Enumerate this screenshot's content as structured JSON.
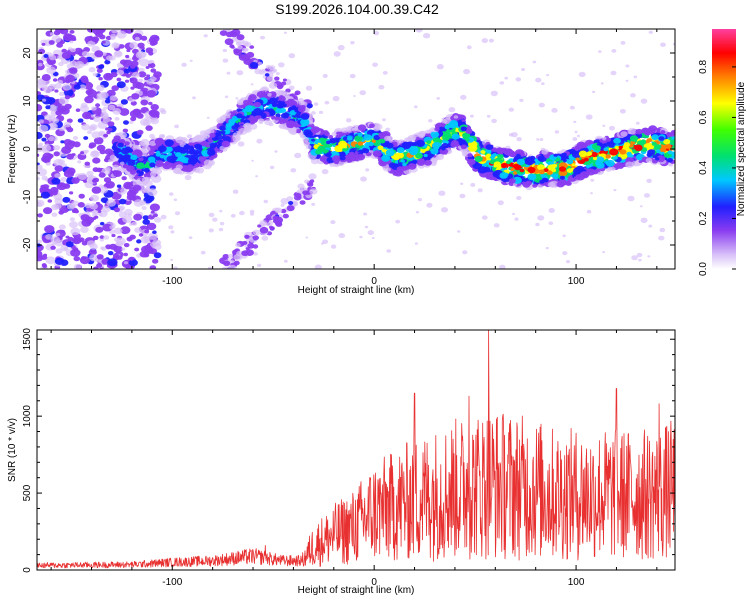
{
  "chart_data": [
    {
      "type": "heatmap",
      "title": "S199.2026.104.00.39.C42",
      "xlabel": "Height of straight line (km)",
      "ylabel": "Frequency (Hz)",
      "xlim": [
        -167,
        149
      ],
      "ylim": [
        -25,
        25
      ],
      "xticks": [
        -100,
        0,
        100
      ],
      "yticks": [
        -20,
        -10,
        0,
        10,
        20
      ],
      "xtick_labels": [
        "-100",
        "0",
        "100"
      ],
      "ytick_labels": [
        "-20",
        "-10",
        "0",
        "10",
        "20"
      ],
      "colorbar": {
        "label": "Normalized spectral amplitude",
        "range": [
          0.0,
          0.95
        ],
        "ticks": [
          0.0,
          0.2,
          0.4,
          0.6,
          0.8
        ],
        "tick_labels": [
          "0.0",
          "0.2",
          "0.4",
          "0.6",
          "0.8"
        ],
        "colors": [
          "#ffffff",
          "#d8c0f8",
          "#8a3cf0",
          "#2020ff",
          "#00c8ff",
          "#00e070",
          "#40ff00",
          "#ffff00",
          "#ff8000",
          "#ff0000",
          "#ff40a0"
        ]
      },
      "ridge": {
        "x": [
          -125,
          -115,
          -105,
          -95,
          -85,
          -75,
          -65,
          -55,
          -45,
          -35,
          -30,
          -20,
          -10,
          0,
          10,
          20,
          30,
          40,
          45,
          50,
          60,
          70,
          78,
          85,
          95,
          105,
          115,
          125,
          135,
          149
        ],
        "y": [
          -0.5,
          -4,
          -0.5,
          -1.5,
          -1,
          3,
          7,
          9,
          8,
          6,
          1,
          0,
          1,
          2,
          -2,
          -1,
          1,
          4,
          3,
          -1,
          -3,
          -4,
          -4.5,
          -4,
          -4,
          -2,
          -1,
          0,
          1,
          0
        ]
      }
    },
    {
      "type": "line",
      "title": "",
      "xlabel": "Height of straight line (km)",
      "ylabel": "SNR (10 * v/v)",
      "xlim": [
        -167,
        149
      ],
      "ylim": [
        0,
        1560
      ],
      "xticks": [
        -100,
        0,
        100
      ],
      "yticks": [
        0,
        500,
        1000,
        1500
      ],
      "xtick_labels": [
        "-100",
        "0",
        "100"
      ],
      "ytick_labels": [
        "0",
        "500",
        "1000",
        "1500"
      ],
      "color": "#e83030",
      "envelope": {
        "x": [
          -167,
          -120,
          -100,
          -80,
          -60,
          -45,
          -36,
          -30,
          -20,
          -10,
          0,
          10,
          20,
          30,
          40,
          50,
          57,
          60,
          70,
          80,
          90,
          100,
          110,
          120,
          130,
          140,
          149
        ],
        "y": [
          30,
          35,
          50,
          60,
          90,
          60,
          60,
          180,
          260,
          320,
          430,
          470,
          530,
          560,
          600,
          620,
          650,
          640,
          620,
          600,
          560,
          560,
          560,
          560,
          560,
          560,
          600
        ]
      },
      "peaks": [
        {
          "x": 56.6,
          "y": 1560
        },
        {
          "x": 20,
          "y": 1150
        },
        {
          "x": 47,
          "y": 1130
        },
        {
          "x": 120,
          "y": 1180
        },
        {
          "x": 141,
          "y": 1080
        },
        {
          "x": -54,
          "y": 160
        }
      ]
    }
  ]
}
